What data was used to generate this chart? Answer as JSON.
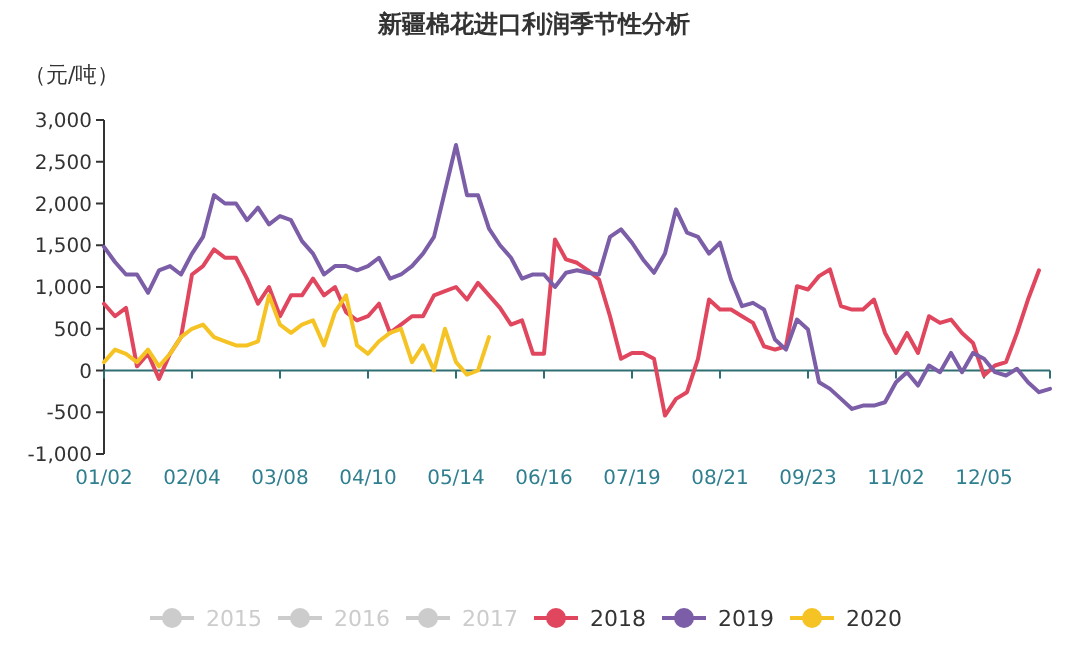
{
  "chart_data": {
    "type": "line",
    "title": "新疆棉花进口利润季节性分析",
    "ylabel": "（元/吨）",
    "categories": [
      "01/02",
      null,
      null,
      null,
      null,
      null,
      null,
      null,
      "02/04",
      null,
      null,
      null,
      null,
      null,
      null,
      null,
      "03/08",
      null,
      null,
      null,
      null,
      null,
      null,
      null,
      "04/10",
      null,
      null,
      null,
      null,
      null,
      null,
      null,
      "05/14",
      null,
      null,
      null,
      null,
      null,
      null,
      null,
      "06/16",
      null,
      null,
      null,
      null,
      null,
      null,
      null,
      "07/19",
      null,
      null,
      null,
      null,
      null,
      null,
      null,
      "08/21",
      null,
      null,
      null,
      null,
      null,
      null,
      null,
      "09/23",
      null,
      null,
      null,
      null,
      null,
      null,
      null,
      "11/02",
      null,
      null,
      null,
      null,
      null,
      null,
      null,
      "12/05",
      null,
      null,
      null,
      null,
      null,
      null
    ],
    "ylim": [
      -1000,
      3000
    ],
    "yticks": [
      {
        "value": -1000,
        "label": "-1,000"
      },
      {
        "value": -500,
        "label": "-500"
      },
      0,
      {
        "value": 500,
        "label": "500"
      },
      {
        "value": 1000,
        "label": "1,000"
      },
      {
        "value": 1500,
        "label": "1,500"
      },
      {
        "value": 2000,
        "label": "2,000"
      },
      {
        "value": 2500,
        "label": "2,500"
      },
      {
        "value": 3000,
        "label": "3,000"
      }
    ],
    "ref_lines": [
      {
        "axis": "y",
        "value": 0,
        "color": "#2f6f73"
      }
    ],
    "grid": false,
    "legend": "bottom",
    "marker": "none",
    "line_style": "solid",
    "series": [
      {
        "name": "2015",
        "color": "#cccccc",
        "values": [
          null,
          null,
          null,
          null,
          null,
          null,
          null,
          null,
          null,
          null,
          null,
          null,
          null,
          null,
          null,
          null,
          null,
          null,
          null,
          null,
          null,
          null,
          null,
          null,
          null,
          null,
          null,
          null,
          null,
          null,
          null,
          null,
          null,
          null,
          null,
          null,
          null,
          null,
          null,
          null,
          null,
          null,
          null,
          null,
          null,
          null,
          null,
          null,
          null,
          null,
          null,
          null,
          null,
          null,
          null,
          null,
          null,
          null,
          null,
          null,
          null,
          null,
          null,
          null,
          null,
          null,
          null,
          null,
          null,
          null,
          null,
          null,
          null,
          null,
          null,
          null,
          null,
          null,
          null,
          null,
          null,
          null,
          null,
          null,
          null,
          null,
          null
        ]
      },
      {
        "name": "2016",
        "color": "#cccccc",
        "values": [
          null,
          null,
          null,
          null,
          null,
          null,
          null,
          null,
          null,
          null,
          null,
          null,
          null,
          null,
          null,
          null,
          null,
          null,
          null,
          null,
          null,
          null,
          null,
          null,
          null,
          null,
          null,
          null,
          null,
          null,
          null,
          null,
          null,
          null,
          null,
          null,
          null,
          null,
          null,
          null,
          null,
          null,
          null,
          null,
          null,
          null,
          null,
          null,
          null,
          null,
          null,
          null,
          null,
          null,
          null,
          null,
          null,
          null,
          null,
          null,
          null,
          null,
          null,
          null,
          null,
          null,
          null,
          null,
          null,
          null,
          null,
          null,
          null,
          null,
          null,
          null,
          null,
          null,
          null,
          null,
          null,
          null,
          null,
          null,
          null,
          null,
          null
        ]
      },
      {
        "name": "2017",
        "color": "#cccccc",
        "values": [
          null,
          null,
          null,
          null,
          null,
          null,
          null,
          null,
          null,
          null,
          null,
          null,
          null,
          null,
          null,
          null,
          null,
          null,
          null,
          null,
          null,
          null,
          null,
          null,
          null,
          null,
          null,
          null,
          null,
          null,
          null,
          null,
          null,
          null,
          null,
          null,
          null,
          null,
          null,
          null,
          null,
          null,
          null,
          null,
          null,
          null,
          null,
          null,
          null,
          null,
          null,
          null,
          null,
          null,
          null,
          null,
          null,
          null,
          null,
          null,
          null,
          null,
          null,
          null,
          null,
          null,
          null,
          null,
          null,
          null,
          null,
          null,
          null,
          null,
          null,
          null,
          null,
          null,
          null,
          null,
          null,
          null,
          null,
          null,
          null,
          null,
          null
        ]
      },
      {
        "name": "2018",
        "color": "#e0475f",
        "values": [
          800,
          650,
          750,
          50,
          200,
          -100,
          200,
          400,
          1150,
          1250,
          1450,
          1350,
          1350,
          1100,
          800,
          1000,
          650,
          900,
          900,
          1100,
          900,
          1000,
          700,
          600,
          650,
          800,
          450,
          550,
          650,
          650,
          900,
          950,
          1000,
          850,
          1050,
          900,
          750,
          550,
          600,
          200,
          200,
          1570,
          1330,
          1290,
          1200,
          1090,
          650,
          140,
          210,
          210,
          140,
          -540,
          -340,
          -260,
          140,
          850,
          730,
          730,
          650,
          570,
          290,
          250,
          290,
          1010,
          970,
          1130,
          1210,
          770,
          730,
          730,
          850,
          450,
          210,
          450,
          210,
          650,
          570,
          610,
          450,
          330,
          -60,
          60,
          100,
          450,
          850,
          1200,
          null
        ]
      },
      {
        "name": "2019",
        "color": "#7b5ea7",
        "values": [
          1480,
          1300,
          1150,
          1150,
          930,
          1200,
          1250,
          1150,
          1400,
          1600,
          2100,
          2000,
          2000,
          1800,
          1950,
          1750,
          1850,
          1800,
          1550,
          1400,
          1150,
          1250,
          1250,
          1200,
          1250,
          1350,
          1100,
          1150,
          1250,
          1400,
          1600,
          2150,
          2700,
          2100,
          2100,
          1700,
          1500,
          1350,
          1100,
          1150,
          1150,
          1000,
          1170,
          1200,
          1170,
          1150,
          1600,
          1690,
          1530,
          1330,
          1170,
          1400,
          1930,
          1650,
          1600,
          1400,
          1530,
          1090,
          770,
          810,
          730,
          370,
          250,
          610,
          490,
          -140,
          -220,
          -340,
          -460,
          -420,
          -420,
          -380,
          -140,
          -20,
          -180,
          60,
          -20,
          210,
          -20,
          210,
          140,
          -20,
          -60,
          20,
          -140,
          -260,
          -220
        ]
      },
      {
        "name": "2020",
        "color": "#f6c324",
        "values": [
          100,
          250,
          200,
          100,
          250,
          50,
          200,
          400,
          500,
          550,
          400,
          350,
          300,
          300,
          350,
          900,
          550,
          450,
          550,
          600,
          300,
          700,
          900,
          300,
          200,
          350,
          450,
          500,
          100,
          300,
          0,
          500,
          100,
          -50,
          0,
          400,
          null,
          null,
          null,
          null,
          null,
          null,
          null,
          null,
          null,
          null,
          null,
          null,
          null,
          null,
          null,
          null,
          null,
          null,
          null,
          null,
          null,
          null,
          null,
          null,
          null,
          null,
          null,
          null,
          null,
          null,
          null,
          null,
          null,
          null,
          null,
          null,
          null,
          null,
          null,
          null,
          null,
          null,
          null,
          null,
          null,
          null,
          null,
          null,
          null,
          null,
          null
        ]
      }
    ]
  }
}
